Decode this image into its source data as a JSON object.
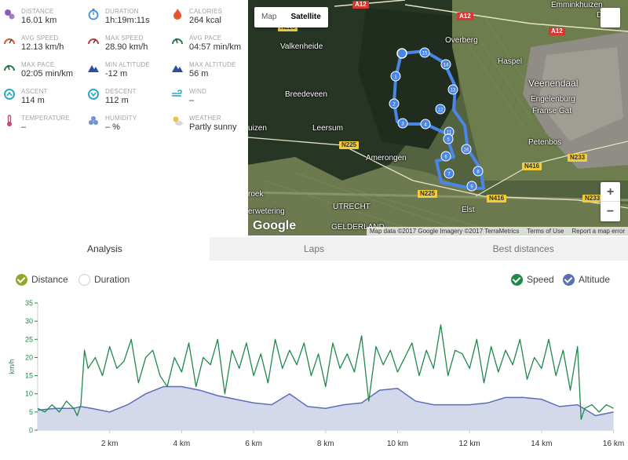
{
  "stats": [
    {
      "id": "distance",
      "label": "DISTANCE",
      "value": "16.01 km",
      "color": "#8e5cb8",
      "icon": "route-pin-icon"
    },
    {
      "id": "duration",
      "label": "DURATION",
      "value": "1h:19m:11s",
      "color": "#3c8fd8",
      "icon": "stopwatch-icon"
    },
    {
      "id": "calories",
      "label": "CALORIES",
      "value": "264 kcal",
      "color": "#e4562e",
      "icon": "flame-icon"
    },
    {
      "id": "avg-speed",
      "label": "AVG SPEED",
      "value": "12.13 km/h",
      "color": "#e4562e",
      "icon": "speedometer-icon"
    },
    {
      "id": "max-speed",
      "label": "MAX SPEED",
      "value": "28.90 km/h",
      "color": "#d23b3b",
      "icon": "speedometer-icon"
    },
    {
      "id": "avg-pace",
      "label": "AVG PACE",
      "value": "04:57 min/km",
      "color": "#1e8a4a",
      "icon": "pace-gauge-icon"
    },
    {
      "id": "max-pace",
      "label": "MAX PACE",
      "value": "02:05 min/km",
      "color": "#1e8a4a",
      "icon": "pace-gauge-icon"
    },
    {
      "id": "min-altitude",
      "label": "MIN ALTITUDE",
      "value": "-12 m",
      "color": "#2b4f9c",
      "icon": "mountain-icon"
    },
    {
      "id": "max-altitude",
      "label": "MAX ALTITUDE",
      "value": "56 m",
      "color": "#2b4f9c",
      "icon": "mountain-icon"
    },
    {
      "id": "ascent",
      "label": "ASCENT",
      "value": "114 m",
      "color": "#2aa8c9",
      "icon": "ascent-icon"
    },
    {
      "id": "descent",
      "label": "DESCENT",
      "value": "112 m",
      "color": "#2aa8c9",
      "icon": "descent-icon"
    },
    {
      "id": "wind",
      "label": "WIND",
      "value": "–",
      "color": "#2aa8c9",
      "icon": "wind-icon"
    },
    {
      "id": "temperature",
      "label": "TEMPERATURE",
      "value": "–",
      "color": "#c44b6b",
      "icon": "thermometer-icon"
    },
    {
      "id": "humidity",
      "label": "HUMIDITY",
      "value": "– %",
      "color": "#6f8fd8",
      "icon": "droplets-icon"
    },
    {
      "id": "weather",
      "label": "WEATHER",
      "value": "Partly sunny",
      "color": "#f0c040",
      "icon": "sun-cloud-icon"
    }
  ],
  "map": {
    "type_buttons": [
      "Map",
      "Satellite"
    ],
    "selected_type": "Satellite",
    "zoom_in": "+",
    "zoom_out": "−",
    "logo": "Google",
    "attribution": [
      "Map data ©2017 Google Imagery ©2017 TerraMetrics",
      "Terms of Use",
      "Report a map error"
    ],
    "places": [
      {
        "name": "Emminkhuizen",
        "big": false
      },
      {
        "name": "Valkenheide",
        "big": false
      },
      {
        "name": "Overberg",
        "big": false
      },
      {
        "name": "Haspel",
        "big": false
      },
      {
        "name": "Veenendaal",
        "big": true
      },
      {
        "name": "Engelenburg",
        "big": false
      },
      {
        "name": "Franse Gat",
        "big": false
      },
      {
        "name": "Breedeveen",
        "big": false
      },
      {
        "name": "Leersum",
        "big": false
      },
      {
        "name": "Petenbos",
        "big": false
      },
      {
        "name": "Amerongen",
        "big": false
      },
      {
        "name": "roek",
        "big": false
      },
      {
        "name": "UTRECHT",
        "big": false
      },
      {
        "name": "Elst",
        "big": false
      },
      {
        "name": "GELDERLAND",
        "big": false
      },
      {
        "name": "erwetering",
        "big": false
      },
      {
        "name": "uizen",
        "big": false
      },
      {
        "name": "De",
        "big": false
      }
    ],
    "roads": [
      {
        "name": "A12",
        "kind": "red"
      },
      {
        "name": "A12",
        "kind": "red"
      },
      {
        "name": "A12",
        "kind": "red"
      },
      {
        "name": "N225",
        "kind": "yel"
      },
      {
        "name": "N225",
        "kind": "yel"
      },
      {
        "name": "N226",
        "kind": "yel"
      },
      {
        "name": "N416",
        "kind": "yel"
      },
      {
        "name": "N416",
        "kind": "yel"
      },
      {
        "name": "N233",
        "kind": "yel"
      },
      {
        "name": "N233",
        "kind": "yel"
      }
    ],
    "markers": [
      "15",
      "14",
      "1",
      "13",
      "2",
      "12",
      "3",
      "4",
      "11",
      "5",
      "16",
      "6",
      "8",
      "7",
      "9"
    ],
    "route_color": "#4a86e8"
  },
  "tabs": [
    {
      "label": "Analysis",
      "active": true
    },
    {
      "label": "Laps",
      "active": false
    },
    {
      "label": "Best distances",
      "active": false
    }
  ],
  "toggles": {
    "distance": {
      "label": "Distance",
      "checked": true,
      "color": "#8fa82a"
    },
    "duration": {
      "label": "Duration",
      "checked": false,
      "color": "#ffffff"
    },
    "speed": {
      "label": "Speed",
      "checked": true,
      "color": "#1e8a4a"
    },
    "altitude": {
      "label": "Altitude",
      "checked": true,
      "color": "#5b6fb5"
    }
  },
  "chart_data": {
    "type": "line",
    "ylabel": "km/h",
    "xunit": "km",
    "yticks": [
      0,
      5,
      10,
      15,
      20,
      25,
      30,
      35
    ],
    "ylim": [
      0,
      35
    ],
    "xlim": [
      0,
      16.01
    ],
    "xticks": [
      {
        "v": 2,
        "label": "2 km"
      },
      {
        "v": 4,
        "label": "4 km"
      },
      {
        "v": 6,
        "label": "6 km"
      },
      {
        "v": 8,
        "label": "8 km"
      },
      {
        "v": 10,
        "label": "10 km"
      },
      {
        "v": 12,
        "label": "12 km"
      },
      {
        "v": 14,
        "label": "14 km"
      },
      {
        "v": 16,
        "label": "16 km"
      }
    ],
    "series": [
      {
        "name": "Speed",
        "color": "#1e8a4a",
        "x": [
          0,
          0.2,
          0.4,
          0.6,
          0.8,
          1.0,
          1.1,
          1.2,
          1.3,
          1.4,
          1.6,
          1.8,
          2.0,
          2.2,
          2.4,
          2.6,
          2.8,
          3.0,
          3.2,
          3.4,
          3.6,
          3.8,
          4.0,
          4.2,
          4.4,
          4.6,
          4.8,
          5.0,
          5.2,
          5.4,
          5.6,
          5.8,
          6.0,
          6.2,
          6.4,
          6.6,
          6.8,
          7.0,
          7.2,
          7.4,
          7.6,
          7.8,
          8.0,
          8.2,
          8.4,
          8.6,
          8.8,
          9.0,
          9.2,
          9.4,
          9.6,
          9.8,
          10.0,
          10.2,
          10.4,
          10.6,
          10.8,
          11.0,
          11.2,
          11.4,
          11.6,
          11.8,
          12.0,
          12.2,
          12.4,
          12.6,
          12.8,
          13.0,
          13.2,
          13.4,
          13.6,
          13.8,
          14.0,
          14.2,
          14.4,
          14.6,
          14.8,
          15.0,
          15.1,
          15.2,
          15.4,
          15.6,
          15.8,
          16.0
        ],
        "y": [
          6,
          5,
          7,
          5,
          8,
          6,
          4,
          7,
          22,
          17,
          20,
          15,
          23,
          17,
          19,
          25,
          13,
          20,
          22,
          15,
          12,
          20,
          16,
          24,
          12,
          20,
          18,
          25,
          10,
          22,
          17,
          24,
          15,
          21,
          13,
          25,
          17,
          22,
          18,
          24,
          15,
          21,
          12,
          24,
          17,
          21,
          16,
          26,
          8,
          23,
          18,
          22,
          16,
          20,
          24,
          15,
          22,
          17,
          29,
          15,
          22,
          21,
          17,
          25,
          13,
          23,
          16,
          22,
          18,
          25,
          14,
          20,
          17,
          25,
          15,
          22,
          11,
          23,
          3,
          6,
          7,
          5,
          7,
          6
        ]
      },
      {
        "name": "Altitude",
        "color": "#5b6fb5",
        "x": [
          0,
          0.5,
          1.0,
          1.2,
          1.5,
          2.0,
          2.5,
          3.0,
          3.5,
          4.0,
          4.5,
          5.0,
          5.5,
          6.0,
          6.5,
          7.0,
          7.5,
          8.0,
          8.5,
          9.0,
          9.5,
          10.0,
          10.5,
          11.0,
          11.5,
          12.0,
          12.5,
          13.0,
          13.5,
          14.0,
          14.5,
          15.0,
          15.5,
          16.0
        ],
        "y": [
          5.5,
          6,
          6,
          6.5,
          6,
          5,
          7,
          10,
          12,
          12,
          11,
          9.5,
          8.5,
          7.5,
          7,
          10,
          6.5,
          6,
          7,
          7.5,
          11,
          11.5,
          8,
          7,
          7,
          7,
          7.5,
          9,
          9,
          8.5,
          6.5,
          7,
          4,
          5
        ]
      }
    ]
  }
}
